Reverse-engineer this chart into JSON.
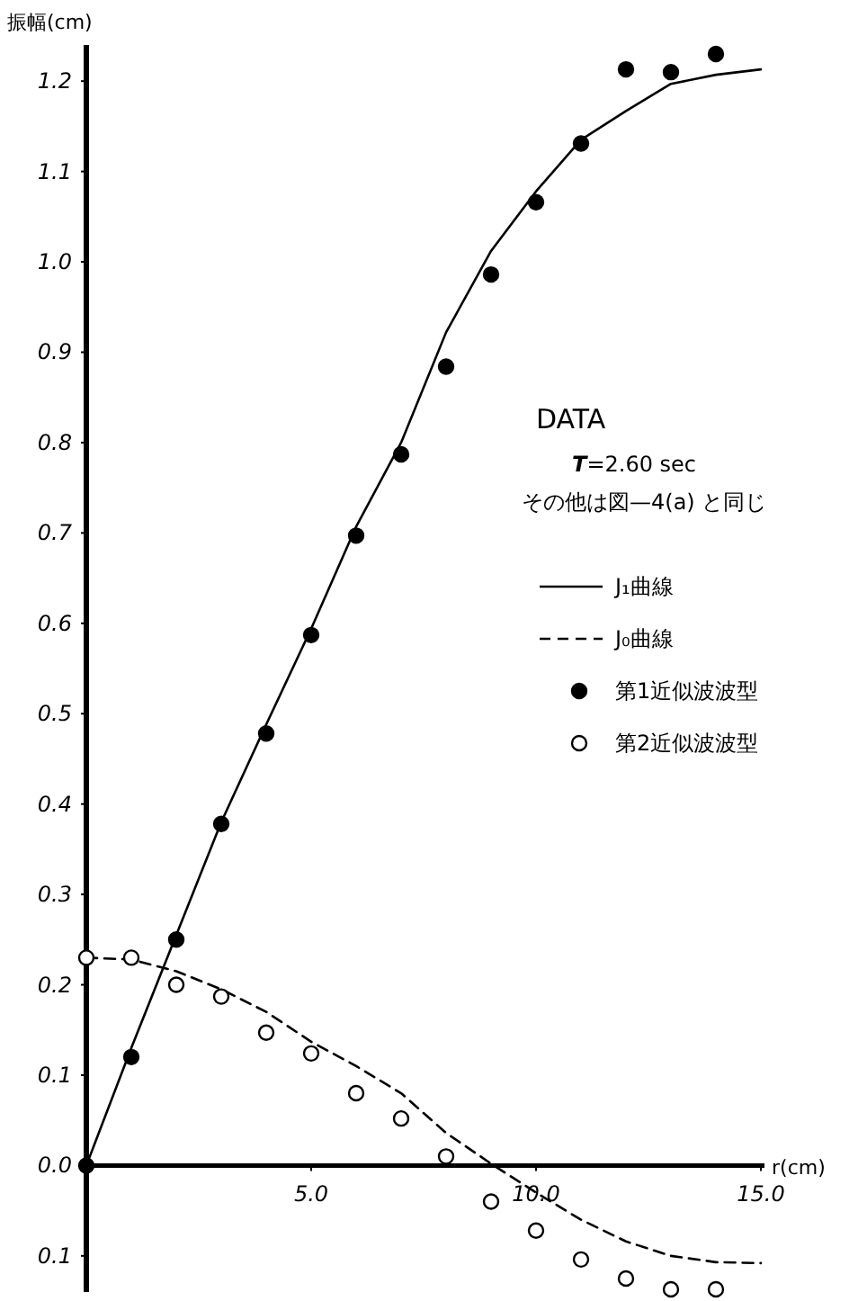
{
  "chart_data": {
    "type": "scatter",
    "ylabel": "振幅(cm)",
    "xlabel": "r(cm)",
    "annotations": [
      "DATA",
      "*T*=2.60 sec",
      "その他は図—4(a) と同じ"
    ],
    "xlim": [
      0,
      15
    ],
    "ylim": [
      -0.14,
      1.24
    ],
    "xticks": [
      {
        "value": 5,
        "label": "5.0"
      },
      {
        "value": 10,
        "label": "10.0"
      },
      {
        "value": 15,
        "label": "15.0"
      }
    ],
    "yticks": [
      {
        "value": -0.1,
        "label": "0.1"
      },
      {
        "value": 0,
        "label": "0.0"
      },
      0.1,
      0.2,
      0.3,
      0.4,
      0.5,
      0.6,
      0.7,
      0.8,
      0.9,
      {
        "value": 1,
        "label": "1.0"
      },
      1.1,
      1.2
    ],
    "grid": false,
    "legend": "right",
    "series": [
      {
        "name": "J₁曲線",
        "type": "line",
        "line_style": "solid",
        "marker": "none",
        "color": "#000000",
        "x": [
          0,
          1,
          2,
          3,
          4,
          5,
          6,
          7,
          8,
          9,
          10,
          11,
          12,
          13,
          14,
          15
        ],
        "values": [
          0,
          0.13,
          0.255,
          0.38,
          0.488,
          0.594,
          0.707,
          0.8,
          0.922,
          1.012,
          1.078,
          1.135,
          1.167,
          1.197,
          1.207,
          1.213
        ]
      },
      {
        "name": "J₀曲線",
        "type": "line",
        "line_style": "dashed",
        "marker": "none",
        "color": "#000000",
        "x": [
          0,
          1,
          2,
          3,
          4,
          5,
          6,
          7,
          8,
          9,
          10,
          11,
          12,
          13,
          14,
          15
        ],
        "values": [
          0.23,
          0.228,
          0.215,
          0.195,
          0.17,
          0.137,
          0.11,
          0.08,
          0.036,
          0.002,
          -0.03,
          -0.06,
          -0.084,
          -0.1,
          -0.107,
          -0.108
        ]
      },
      {
        "name": "第1近似波波型",
        "marker": "circle",
        "color": "#000000",
        "x": [
          0,
          1,
          2,
          3,
          4,
          5,
          6,
          7,
          8,
          9,
          10,
          11,
          12,
          13,
          14
        ],
        "values": [
          0,
          0.12,
          0.25,
          0.378,
          0.478,
          0.587,
          0.697,
          0.787,
          0.884,
          0.986,
          1.066,
          1.131,
          1.213,
          1.21,
          1.23
        ]
      },
      {
        "name": "第2近似波波型",
        "marker": "circle",
        "color": "#ffffff",
        "x": [
          0,
          1,
          2,
          3,
          4,
          5,
          6,
          7,
          8,
          9,
          10,
          11,
          12,
          13,
          14
        ],
        "values": [
          0.23,
          0.23,
          0.2,
          0.187,
          0.147,
          0.124,
          0.08,
          0.052,
          0.01,
          -0.04,
          -0.072,
          -0.104,
          -0.125,
          -0.137,
          -0.137
        ]
      }
    ]
  }
}
